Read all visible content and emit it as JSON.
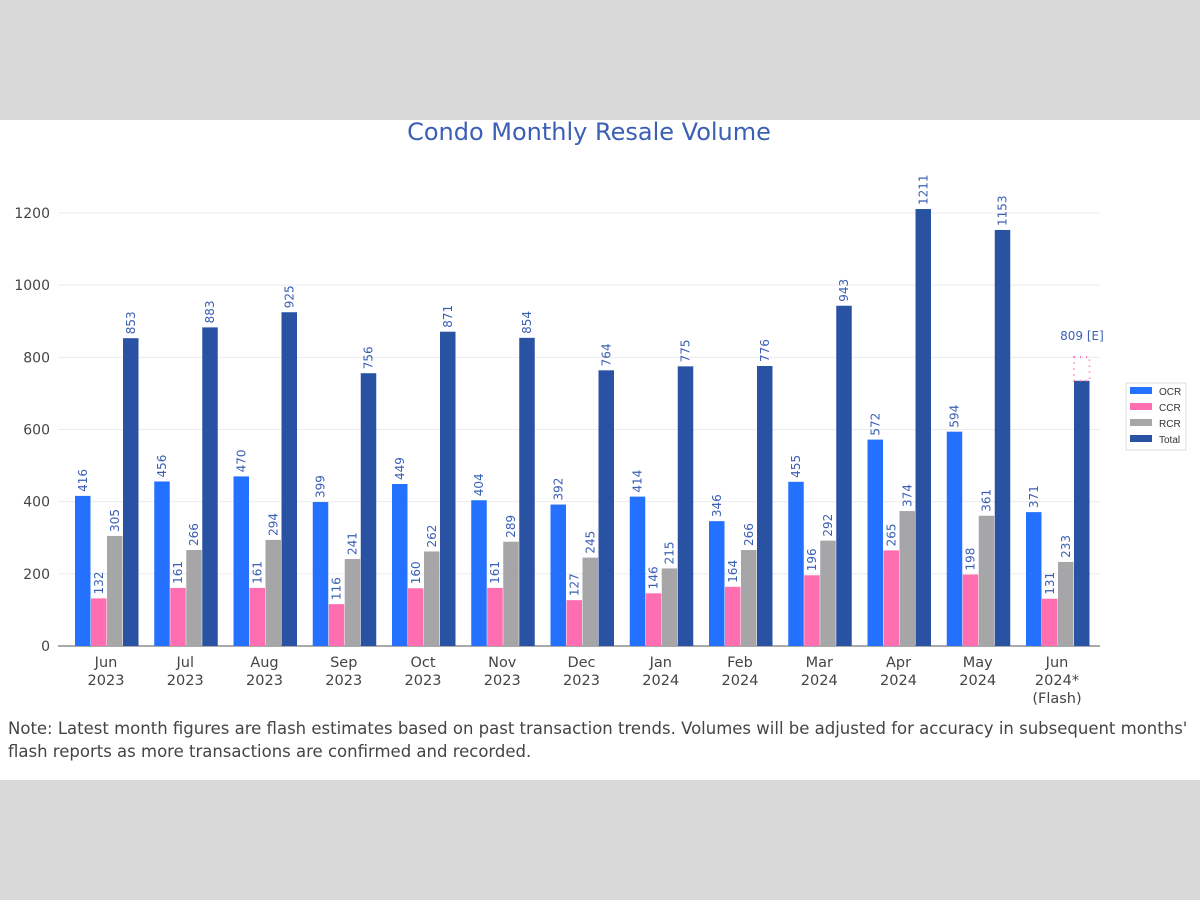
{
  "chart_data": {
    "type": "bar",
    "title": "Condo Monthly Resale Volume",
    "categories": [
      [
        "Jun",
        "2023"
      ],
      [
        "Jul",
        "2023"
      ],
      [
        "Aug",
        "2023"
      ],
      [
        "Sep",
        "2023"
      ],
      [
        "Oct",
        "2023"
      ],
      [
        "Nov",
        "2023"
      ],
      [
        "Dec",
        "2023"
      ],
      [
        "Jan",
        "2024"
      ],
      [
        "Feb",
        "2024"
      ],
      [
        "Mar",
        "2024"
      ],
      [
        "Apr",
        "2024"
      ],
      [
        "May",
        "2024"
      ],
      [
        "Jun",
        "2024*",
        "(Flash)"
      ]
    ],
    "series": [
      {
        "name": "OCR",
        "color": "#2470ff",
        "values": [
          416,
          456,
          470,
          399,
          449,
          404,
          392,
          414,
          346,
          455,
          572,
          594,
          371
        ]
      },
      {
        "name": "CCR",
        "color": "#ff6eb0",
        "values": [
          132,
          161,
          161,
          116,
          160,
          161,
          127,
          146,
          164,
          196,
          265,
          198,
          131
        ]
      },
      {
        "name": "RCR",
        "color": "#a6a6a8",
        "values": [
          305,
          266,
          294,
          241,
          262,
          289,
          245,
          215,
          266,
          292,
          374,
          361,
          233
        ]
      },
      {
        "name": "Total",
        "color": "#2a52a3",
        "values": [
          853,
          883,
          925,
          756,
          871,
          854,
          764,
          775,
          776,
          943,
          1211,
          1153,
          735
        ]
      }
    ],
    "total_labels": [
      "853",
      "883",
      "925",
      "756",
      "871",
      "854",
      "764",
      "775",
      "776",
      "943",
      "1211",
      "1153",
      ""
    ],
    "estimate": {
      "value": 809,
      "label": "809 [E]",
      "color": "#ff6eb0"
    },
    "yticks": [
      0,
      200,
      400,
      600,
      800,
      1000,
      1200
    ],
    "ylim": [
      0,
      1300
    ],
    "grid": true,
    "legend_position": "right"
  },
  "note": "Note: Latest month figures are flash estimates based on past transaction trends. Volumes will be adjusted for accuracy in subsequent months' flash reports as more transactions are confirmed and recorded."
}
